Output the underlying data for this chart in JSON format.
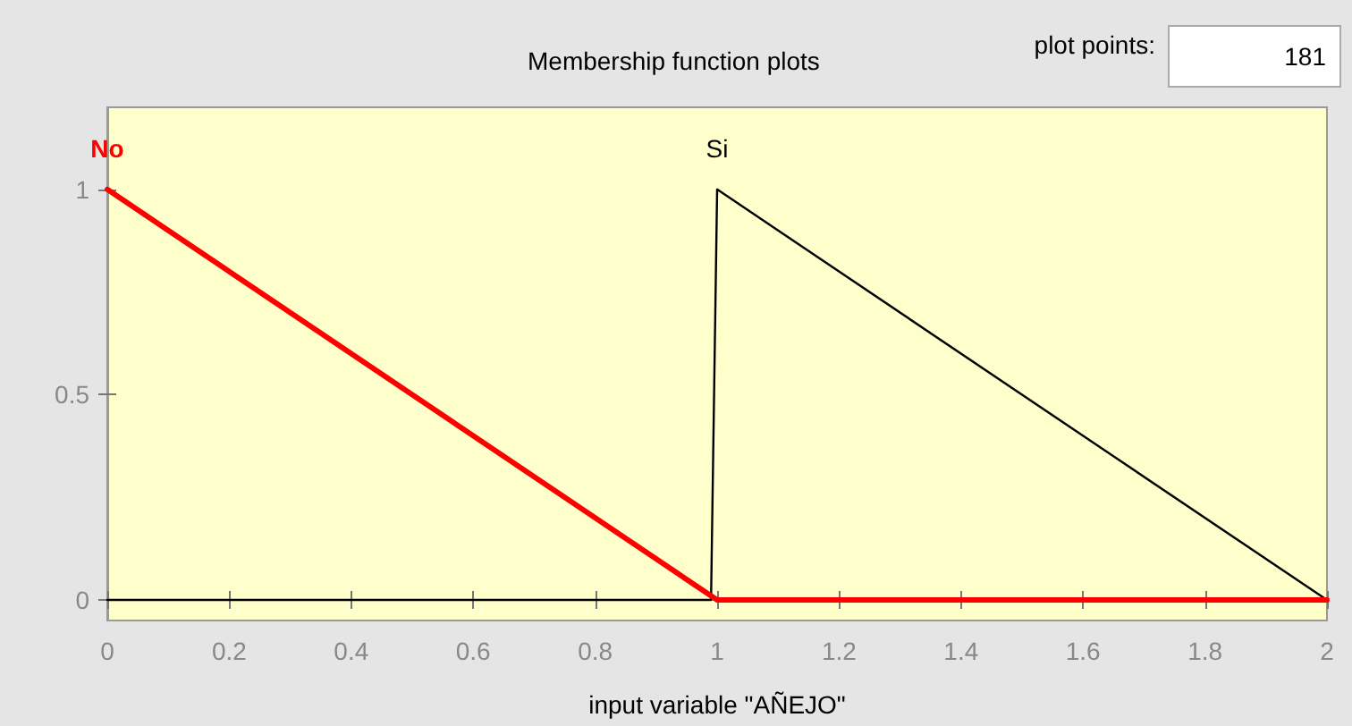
{
  "chart_data": {
    "type": "line",
    "title": "Membership function plots",
    "xlabel": "input variable \"AÑEJO\"",
    "annotations": [
      "plot points:",
      "181"
    ],
    "series": [
      {
        "name": "No",
        "color": "#ff0000",
        "x": [
          0,
          1,
          2
        ],
        "values": [
          1,
          0,
          0
        ]
      },
      {
        "name": "Si",
        "color": "#000000",
        "x": [
          0,
          0.99,
          1,
          2
        ],
        "values": [
          0,
          0,
          1,
          0
        ]
      }
    ],
    "xlim": [
      0,
      2
    ],
    "xticks": [
      0,
      0.2,
      0.4,
      0.6,
      0.8,
      1,
      1.2,
      1.4,
      1.6,
      1.8,
      2
    ],
    "ylim": [
      -0.05,
      1.2
    ],
    "yticks": [
      0,
      0.5,
      1
    ],
    "legend": false,
    "marker": "none",
    "line_style": "solid"
  }
}
